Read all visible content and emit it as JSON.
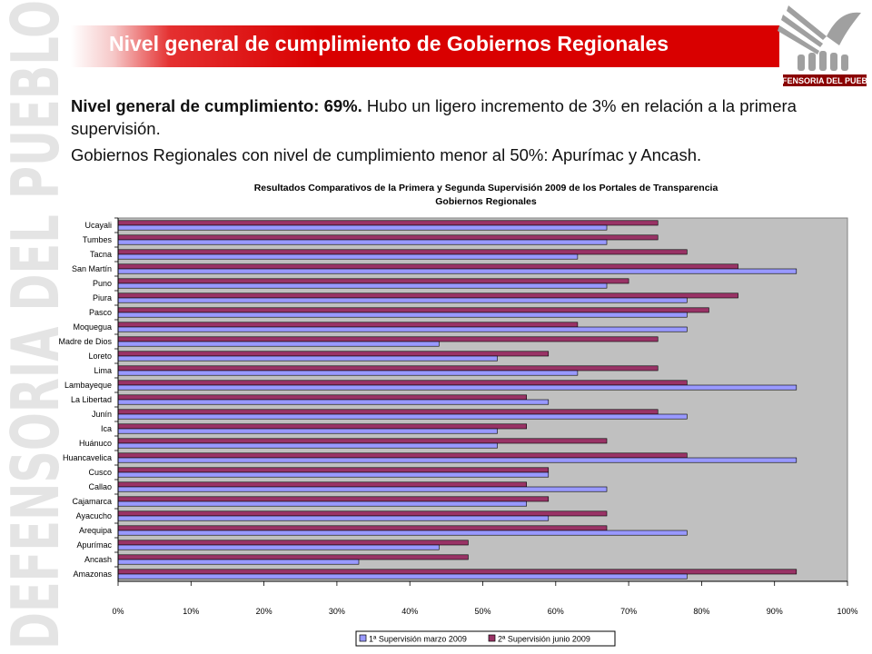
{
  "header": {
    "title": "Nivel general de cumplimiento de Gobiernos Regionales",
    "logo_text": "DEFENSORIA DEL PUEBLO",
    "watermark_text": "DEFENSORIA DEL PUEBLO"
  },
  "intro": {
    "line1_bold": "Nivel general de cumplimiento: 69%.",
    "line1_rest": " Hubo un ligero incremento de 3% en relación a la primera supervisión.",
    "line2": "Gobiernos Regionales con nivel de cumplimiento menor al 50%: Apurímac y Ancash."
  },
  "colors": {
    "banner": "#d90000",
    "series1": "#9999ff",
    "series2": "#993366",
    "plot_bg": "#c0c0c0"
  },
  "chart_data": {
    "type": "bar",
    "orientation": "horizontal",
    "title_line1": "Resultados Comparativos de la Primera y Segunda Supervisión 2009 de los Portales de Transparencia",
    "title_line2": "Gobiernos Regionales",
    "categories": [
      "Ucayali",
      "Tumbes",
      "Tacna",
      "San Martín",
      "Puno",
      "Piura",
      "Pasco",
      "Moquegua",
      "Madre de Dios",
      "Loreto",
      "Lima",
      "Lambayeque",
      "La Libertad",
      "Junín",
      "Ica",
      "Huánuco",
      "Huancavelica",
      "Cusco",
      "Callao",
      "Cajamarca",
      "Ayacucho",
      "Arequipa",
      "Apurímac",
      "Ancash",
      "Amazonas"
    ],
    "series": [
      {
        "name": "1ª Supervisión marzo 2009",
        "color": "#9999ff",
        "values": [
          67,
          67,
          63,
          93,
          67,
          78,
          78,
          78,
          44,
          52,
          63,
          93,
          59,
          78,
          52,
          52,
          93,
          59,
          67,
          56,
          59,
          78,
          44,
          33,
          78
        ]
      },
      {
        "name": "2ª Supervisión junio 2009",
        "color": "#993366",
        "values": [
          74,
          74,
          78,
          85,
          70,
          85,
          81,
          63,
          74,
          59,
          74,
          78,
          56,
          74,
          56,
          67,
          78,
          59,
          56,
          59,
          67,
          67,
          48,
          48,
          93
        ]
      }
    ],
    "x_ticks": [
      "0%",
      "10%",
      "20%",
      "30%",
      "40%",
      "50%",
      "60%",
      "70%",
      "80%",
      "90%",
      "100%"
    ],
    "xlim": [
      0,
      100
    ],
    "grid": false,
    "legend_position": "bottom"
  }
}
